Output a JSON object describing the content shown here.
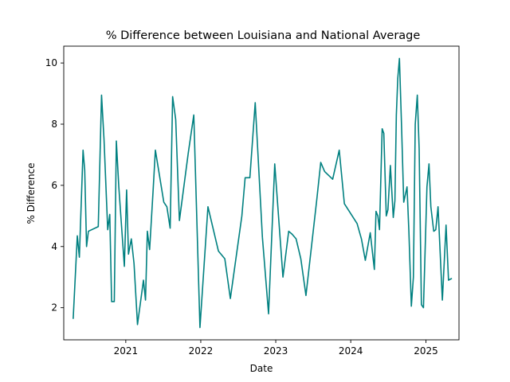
{
  "chart_data": {
    "type": "line",
    "title": "% Difference between Louisiana and National Average",
    "xlabel": "Date",
    "ylabel": "% Difference",
    "grid": false,
    "legend": "none",
    "xlim": [
      "2020-03-05",
      "2025-06-11"
    ],
    "ylim": [
      0.95,
      10.55
    ],
    "xticks": [
      {
        "date": "2021-01-01",
        "label": "2021"
      },
      {
        "date": "2022-01-01",
        "label": "2022"
      },
      {
        "date": "2023-01-01",
        "label": "2023"
      },
      {
        "date": "2024-01-01",
        "label": "2024"
      },
      {
        "date": "2025-01-01",
        "label": "2025"
      }
    ],
    "yticks": [
      2,
      4,
      6,
      8,
      10
    ],
    "series": [
      {
        "color": "#008080",
        "points": [
          [
            "2020-04-20",
            1.65
          ],
          [
            "2020-05-10",
            4.35
          ],
          [
            "2020-05-20",
            3.65
          ],
          [
            "2020-06-07",
            7.15
          ],
          [
            "2020-06-15",
            6.5
          ],
          [
            "2020-06-24",
            4.0
          ],
          [
            "2020-07-03",
            4.5
          ],
          [
            "2020-08-20",
            4.65
          ],
          [
            "2020-09-05",
            8.95
          ],
          [
            "2020-09-17",
            7.5
          ],
          [
            "2020-10-05",
            4.55
          ],
          [
            "2020-10-15",
            5.05
          ],
          [
            "2020-10-24",
            2.2
          ],
          [
            "2020-11-06",
            2.2
          ],
          [
            "2020-11-16",
            7.45
          ],
          [
            "2020-11-28",
            5.95
          ],
          [
            "2020-12-25",
            3.35
          ],
          [
            "2021-01-05",
            5.85
          ],
          [
            "2021-01-14",
            3.75
          ],
          [
            "2021-01-28",
            4.25
          ],
          [
            "2021-02-10",
            3.45
          ],
          [
            "2021-02-27",
            1.45
          ],
          [
            "2021-03-28",
            2.9
          ],
          [
            "2021-04-07",
            2.25
          ],
          [
            "2021-04-16",
            4.5
          ],
          [
            "2021-04-27",
            3.9
          ],
          [
            "2021-05-15",
            5.95
          ],
          [
            "2021-05-25",
            7.15
          ],
          [
            "2021-07-05",
            5.45
          ],
          [
            "2021-07-20",
            5.3
          ],
          [
            "2021-08-05",
            4.6
          ],
          [
            "2021-08-17",
            8.9
          ],
          [
            "2021-09-01",
            8.15
          ],
          [
            "2021-09-19",
            4.85
          ],
          [
            "2021-11-01",
            7.05
          ],
          [
            "2021-11-28",
            8.3
          ],
          [
            "2021-12-28",
            1.35
          ],
          [
            "2022-02-05",
            5.3
          ],
          [
            "2022-03-28",
            3.85
          ],
          [
            "2022-04-28",
            3.6
          ],
          [
            "2022-05-25",
            2.3
          ],
          [
            "2022-07-20",
            5.0
          ],
          [
            "2022-08-05",
            6.25
          ],
          [
            "2022-08-28",
            6.25
          ],
          [
            "2022-09-23",
            8.7
          ],
          [
            "2022-10-28",
            4.3
          ],
          [
            "2022-11-27",
            1.8
          ],
          [
            "2022-12-27",
            6.7
          ],
          [
            "2023-02-05",
            3.0
          ],
          [
            "2023-03-05",
            4.5
          ],
          [
            "2023-03-22",
            4.4
          ],
          [
            "2023-04-10",
            4.25
          ],
          [
            "2023-05-03",
            3.6
          ],
          [
            "2023-05-28",
            2.4
          ],
          [
            "2023-07-20",
            5.55
          ],
          [
            "2023-08-08",
            6.75
          ],
          [
            "2023-08-27",
            6.45
          ],
          [
            "2023-10-05",
            6.2
          ],
          [
            "2023-11-06",
            7.15
          ],
          [
            "2023-12-01",
            5.4
          ],
          [
            "2024-02-01",
            4.75
          ],
          [
            "2024-02-22",
            4.25
          ],
          [
            "2024-03-12",
            3.55
          ],
          [
            "2024-04-05",
            4.45
          ],
          [
            "2024-04-25",
            3.25
          ],
          [
            "2024-05-03",
            5.15
          ],
          [
            "2024-05-12",
            5.0
          ],
          [
            "2024-05-20",
            4.55
          ],
          [
            "2024-06-02",
            7.85
          ],
          [
            "2024-06-10",
            7.7
          ],
          [
            "2024-06-22",
            5.0
          ],
          [
            "2024-06-30",
            5.2
          ],
          [
            "2024-07-12",
            6.65
          ],
          [
            "2024-07-26",
            4.95
          ],
          [
            "2024-08-03",
            5.5
          ],
          [
            "2024-08-10",
            8.3
          ],
          [
            "2024-08-17",
            9.5
          ],
          [
            "2024-08-25",
            10.15
          ],
          [
            "2024-09-05",
            7.8
          ],
          [
            "2024-09-15",
            5.45
          ],
          [
            "2024-10-01",
            5.95
          ],
          [
            "2024-10-10",
            4.5
          ],
          [
            "2024-10-22",
            2.05
          ],
          [
            "2024-11-01",
            3.0
          ],
          [
            "2024-11-10",
            8.0
          ],
          [
            "2024-11-20",
            8.95
          ],
          [
            "2024-11-29",
            7.2
          ],
          [
            "2024-12-10",
            2.1
          ],
          [
            "2024-12-20",
            2.0
          ],
          [
            "2025-01-06",
            5.95
          ],
          [
            "2025-01-16",
            6.7
          ],
          [
            "2025-01-25",
            5.3
          ],
          [
            "2025-02-08",
            4.5
          ],
          [
            "2025-02-18",
            4.55
          ],
          [
            "2025-03-01",
            5.3
          ],
          [
            "2025-03-22",
            2.25
          ],
          [
            "2025-04-09",
            4.7
          ],
          [
            "2025-04-21",
            2.9
          ],
          [
            "2025-05-05",
            2.95
          ]
        ]
      }
    ]
  }
}
